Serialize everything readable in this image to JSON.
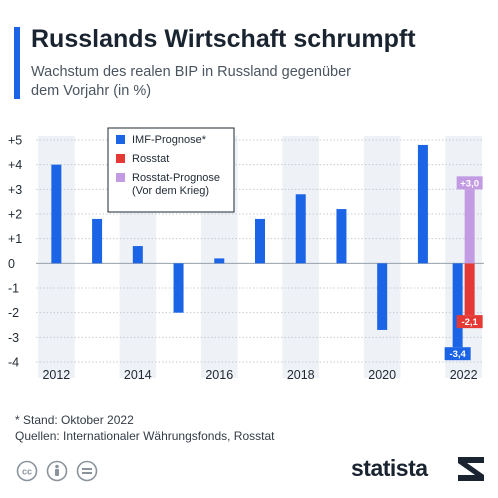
{
  "header": {
    "title": "Russlands Wirtschaft schrumpft",
    "subtitle": "Wachstum des realen BIP in Russland gegenüber dem Vorjahr (in %)"
  },
  "chart_data": {
    "type": "bar",
    "title": "Russlands Wirtschaft schrumpft",
    "subtitle": "Wachstum des realen BIP in Russland gegenüber dem Vorjahr (in %)",
    "ylim": [
      -4,
      5
    ],
    "y_ticks": [
      5,
      4,
      3,
      2,
      1,
      0,
      -1,
      -2,
      -3,
      -4
    ],
    "y_tick_labels": [
      "+5",
      "+4",
      "+3",
      "+2",
      "+1",
      "0",
      "-1",
      "-2",
      "-3",
      "-4"
    ],
    "years": [
      2012,
      2013,
      2014,
      2015,
      2016,
      2017,
      2018,
      2019,
      2020,
      2021,
      2022
    ],
    "x_tick_labels": [
      "2012",
      "2014",
      "2016",
      "2018",
      "2020",
      "2022"
    ],
    "legend_position": "top-left",
    "series": [
      {
        "name": "IMF-Prognose*",
        "color": "#1b64e6",
        "values": [
          4.0,
          1.8,
          0.7,
          -2.0,
          0.2,
          1.8,
          2.8,
          2.2,
          -2.7,
          4.8,
          -3.4
        ]
      },
      {
        "name": "Rosstat",
        "color": "#e53935",
        "values": [
          null,
          null,
          null,
          null,
          null,
          null,
          null,
          null,
          null,
          null,
          -2.1
        ]
      },
      {
        "name": "Rosstat-Prognose (Vor dem Krieg)",
        "legend_lines": [
          "Rosstat-Prognose",
          "(Vor dem Krieg)"
        ],
        "color": "#c39be3",
        "values": [
          null,
          null,
          null,
          null,
          null,
          null,
          null,
          null,
          null,
          null,
          3.0
        ]
      }
    ],
    "data_labels": [
      {
        "series": 0,
        "year": 2022,
        "text": "-3,4"
      },
      {
        "series": 1,
        "year": 2022,
        "text": "-2,1"
      },
      {
        "series": 2,
        "year": 2022,
        "text": "+3,0"
      }
    ]
  },
  "footer": {
    "note": "* Stand: Oktober 2022",
    "sources": "Quellen: Internationaler Währungsfonds, Rosstat",
    "brand": "statista"
  }
}
